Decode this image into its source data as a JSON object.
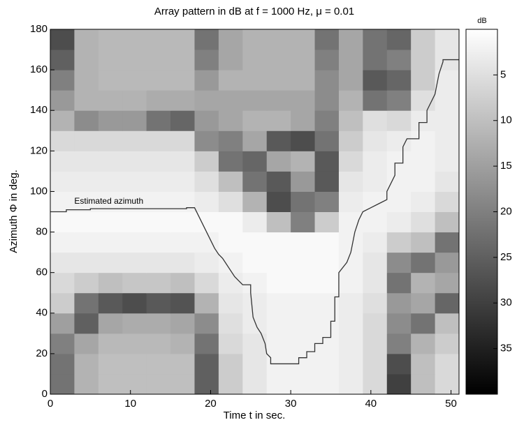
{
  "chart_data": {
    "type": "heatmap",
    "title": "Array pattern in dB at f = 1000 Hz, μ = 0.01",
    "x_label": "Time t in sec.",
    "y_label": "Azimuth Φ in deg.",
    "xlim": [
      0,
      51
    ],
    "xticks": [
      0,
      10,
      20,
      30,
      40,
      50
    ],
    "ylim": [
      0,
      180
    ],
    "yticks": [
      0,
      20,
      40,
      60,
      80,
      100,
      120,
      140,
      160,
      180
    ],
    "grid": false,
    "xbins": [
      0,
      3,
      6,
      9,
      12,
      15,
      18,
      21,
      24,
      27,
      30,
      33,
      36,
      39,
      42,
      45,
      48,
      51
    ],
    "ybins": [
      0,
      10,
      20,
      30,
      40,
      50,
      60,
      70,
      80,
      90,
      100,
      110,
      120,
      130,
      140,
      150,
      160,
      170,
      180
    ],
    "z": [
      [
        22,
        12,
        10,
        10,
        10,
        10,
        25,
        8,
        4,
        2,
        2,
        2,
        3,
        6,
        30,
        10,
        6
      ],
      [
        22,
        12,
        10,
        10,
        10,
        10,
        25,
        8,
        4,
        2,
        2,
        2,
        3,
        6,
        28,
        10,
        6
      ],
      [
        20,
        14,
        11,
        11,
        11,
        12,
        22,
        6,
        4,
        2,
        2,
        2,
        3,
        6,
        20,
        12,
        8
      ],
      [
        15,
        25,
        14,
        13,
        13,
        14,
        18,
        5,
        3,
        2,
        2,
        2,
        3,
        6,
        18,
        22,
        10
      ],
      [
        8,
        22,
        26,
        28,
        26,
        27,
        12,
        4,
        3,
        2,
        2,
        2,
        3,
        5,
        16,
        14,
        24
      ],
      [
        6,
        8,
        10,
        9,
        9,
        10,
        6,
        3,
        2,
        1,
        1,
        1,
        2,
        4,
        22,
        12,
        14
      ],
      [
        4,
        4,
        4,
        4,
        4,
        4,
        3,
        2,
        1,
        1,
        1,
        1,
        2,
        4,
        18,
        22,
        16
      ],
      [
        2,
        2,
        2,
        2,
        2,
        2,
        2,
        1,
        1,
        1,
        1,
        1,
        2,
        3,
        8,
        10,
        22
      ],
      [
        1,
        1,
        1,
        1,
        1,
        1,
        1,
        1,
        3,
        10,
        20,
        8,
        2,
        2,
        3,
        5,
        10
      ],
      [
        2,
        2,
        2,
        2,
        2,
        2,
        3,
        5,
        12,
        28,
        22,
        20,
        3,
        2,
        2,
        3,
        6
      ],
      [
        3,
        3,
        3,
        3,
        3,
        3,
        5,
        10,
        22,
        26,
        16,
        26,
        4,
        3,
        2,
        2,
        4
      ],
      [
        4,
        4,
        4,
        4,
        4,
        4,
        8,
        22,
        24,
        14,
        12,
        26,
        6,
        3,
        2,
        2,
        3
      ],
      [
        6,
        6,
        6,
        6,
        6,
        6,
        18,
        20,
        14,
        26,
        28,
        22,
        8,
        4,
        3,
        2,
        3
      ],
      [
        12,
        18,
        16,
        16,
        22,
        24,
        16,
        14,
        12,
        12,
        14,
        20,
        10,
        5,
        6,
        3,
        3
      ],
      [
        16,
        12,
        12,
        12,
        13,
        13,
        14,
        14,
        14,
        14,
        14,
        18,
        12,
        22,
        20,
        5,
        3
      ],
      [
        20,
        12,
        11,
        11,
        11,
        11,
        16,
        12,
        12,
        12,
        12,
        18,
        14,
        26,
        24,
        8,
        3
      ],
      [
        25,
        12,
        11,
        11,
        11,
        11,
        20,
        14,
        12,
        12,
        12,
        20,
        14,
        22,
        20,
        8,
        4
      ],
      [
        28,
        12,
        11,
        11,
        11,
        11,
        22,
        14,
        12,
        12,
        12,
        22,
        14,
        22,
        24,
        8,
        4
      ]
    ],
    "colorbar": {
      "label": "dB",
      "clim": [
        0,
        40
      ],
      "ticks": [
        5,
        10,
        15,
        20,
        25,
        30,
        35
      ]
    },
    "series": [
      {
        "name": "Estimated azimuth",
        "color": "#333333",
        "x": [
          0,
          2,
          2,
          5,
          5,
          17,
          17,
          18,
          18.5,
          19,
          19.5,
          20,
          20.5,
          21,
          21.5,
          22,
          22.5,
          23,
          23.5,
          24,
          25,
          25,
          25.3,
          25.8,
          26.3,
          26.8,
          27,
          27.5,
          27.5,
          31,
          31,
          32,
          32,
          33,
          33,
          34,
          34,
          35,
          35,
          35.5,
          35.5,
          36,
          36,
          37,
          37.5,
          38,
          38.5,
          39,
          40,
          41,
          42,
          42,
          43,
          43,
          44,
          44,
          44.5,
          46,
          46,
          47,
          47,
          48,
          48.5,
          49,
          49,
          51
        ],
        "y": [
          90,
          90,
          91,
          91,
          91.5,
          91.5,
          92,
          92,
          88,
          84,
          80,
          76,
          72,
          69,
          67,
          64,
          61,
          58,
          56,
          54,
          54,
          50,
          38,
          33,
          30,
          25,
          20,
          18,
          15,
          15,
          18,
          18,
          21,
          21,
          25,
          25,
          28,
          28,
          36,
          36,
          48,
          48,
          60,
          65,
          70,
          80,
          86,
          90,
          92,
          94,
          96,
          100,
          108,
          114,
          114,
          122,
          126,
          126,
          134,
          134,
          140,
          148,
          158,
          164,
          165,
          165
        ]
      }
    ],
    "annotation": {
      "text": "Estimated azimuth",
      "x": 3,
      "y": 95
    }
  }
}
